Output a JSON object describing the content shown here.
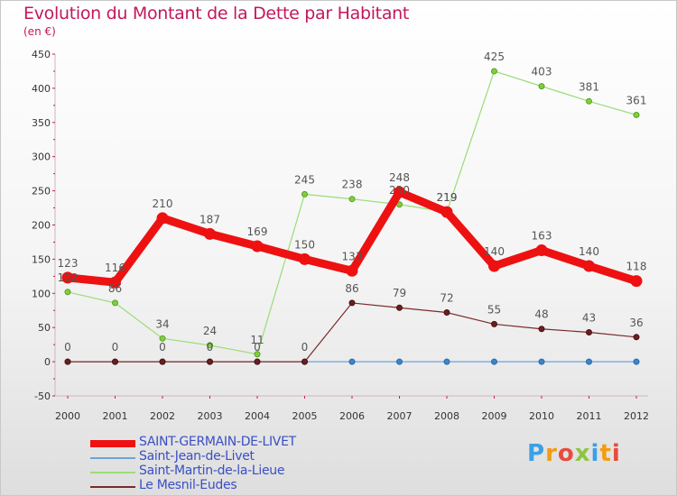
{
  "title": "Evolution du Montant de la Dette par Habitant",
  "unit": "(en €)",
  "logo": {
    "text": "Proxiti",
    "colors": [
      "#3ba0e6",
      "#f39c12",
      "#e74c3c",
      "#8cc63f",
      "#3ba0e6",
      "#f39c12",
      "#e74c3c"
    ]
  },
  "chart_data": {
    "type": "line",
    "x": [
      "2000",
      "2001",
      "2002",
      "2003",
      "2004",
      "2005",
      "2006",
      "2007",
      "2008",
      "2009",
      "2010",
      "2011",
      "2012"
    ],
    "ylim": [
      -50,
      450
    ],
    "yticks": [
      -50,
      0,
      50,
      100,
      150,
      200,
      250,
      300,
      350,
      400,
      450
    ],
    "grid": false,
    "legend": "bottom-left",
    "series": [
      {
        "name": "SAINT-GERMAIN-DE-LIVET",
        "color": "#ee1111",
        "values": [
          123,
          116,
          210,
          187,
          169,
          150,
          133,
          248,
          219,
          140,
          163,
          140,
          118
        ]
      },
      {
        "name": "Saint-Jean-de-Livet",
        "color": "#6fa3d8",
        "values": [
          0,
          0,
          0,
          0,
          0,
          0,
          0,
          0,
          0,
          0,
          0,
          0,
          0
        ]
      },
      {
        "name": "Saint-Martin-de-la-Lieue",
        "color": "#99dd77",
        "values": [
          102,
          86,
          34,
          24,
          11,
          245,
          238,
          230,
          219,
          425,
          403,
          381,
          361
        ]
      },
      {
        "name": "Le Mesnil-Eudes",
        "color": "#7a2a2a",
        "values": [
          0,
          0,
          0,
          0,
          0,
          0,
          86,
          79,
          72,
          55,
          48,
          43,
          36
        ]
      }
    ]
  }
}
